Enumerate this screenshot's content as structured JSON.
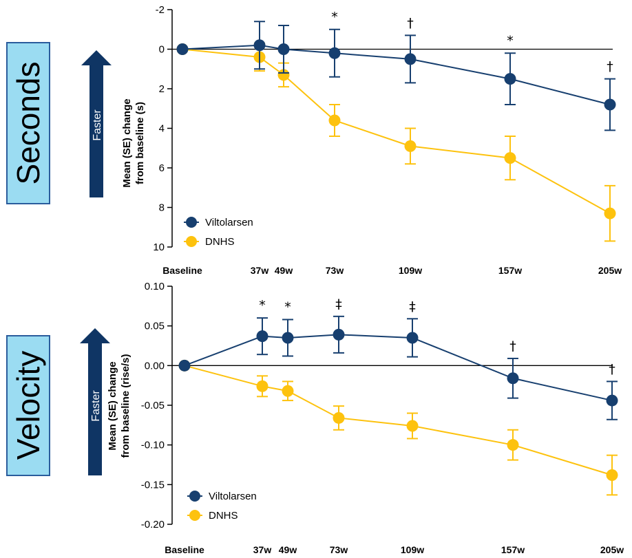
{
  "colors": {
    "viltolarsen": "#173f6f",
    "dnhs": "#fdc20e",
    "panel_fill": "#9bdcf2",
    "panel_border": "#2a5c9c",
    "arrow": "#0f3564"
  },
  "panels": [
    {
      "side_label": "Seconds",
      "arrow_label": "Faster",
      "ylabel_line1": "Mean (SE) change",
      "ylabel_line2": "from baseline (s)",
      "legend": [
        "Viltolarsen",
        "DNHS"
      ],
      "x_labels": [
        "Baseline",
        "37w",
        "49w",
        "73w",
        "109w",
        "157w",
        "205w"
      ]
    },
    {
      "side_label": "Velocity",
      "arrow_label": "Faster",
      "ylabel_line1": "Mean (SE) change",
      "ylabel_line2": "from baseline (rise/s)",
      "legend": [
        "Viltolarsen",
        "DNHS"
      ],
      "x_labels": [
        "Baseline",
        "37w",
        "49w",
        "73w",
        "109w",
        "157w",
        "205w"
      ]
    }
  ],
  "chart_data": [
    {
      "type": "line",
      "x": [
        "Baseline",
        "37w",
        "49w",
        "73w",
        "109w",
        "157w",
        "205w"
      ],
      "x_weeks": [
        0,
        37,
        49,
        73,
        109,
        157,
        205
      ],
      "ylim": [
        -2,
        10
      ],
      "y_inverted": true,
      "yticks": [
        "-2",
        "0",
        "2",
        "4",
        "6",
        "8",
        "10"
      ],
      "series": [
        {
          "name": "Viltolarsen",
          "values": [
            0,
            -0.2,
            0,
            0.2,
            0.5,
            1.5,
            2.8
          ],
          "se": [
            0,
            1.2,
            1.2,
            1.2,
            1.2,
            1.3,
            1.3
          ]
        },
        {
          "name": "DNHS",
          "values": [
            0,
            0.4,
            1.3,
            3.6,
            4.9,
            5.5,
            8.3
          ],
          "se": [
            0,
            0.7,
            0.6,
            0.8,
            0.9,
            1.1,
            1.4
          ]
        }
      ],
      "annotations": [
        {
          "x": "73w",
          "text": "*"
        },
        {
          "x": "109w",
          "text": "†"
        },
        {
          "x": "157w",
          "text": "*"
        },
        {
          "x": "205w",
          "text": "†"
        }
      ]
    },
    {
      "type": "line",
      "x": [
        "Baseline",
        "37w",
        "49w",
        "73w",
        "109w",
        "157w",
        "205w"
      ],
      "x_weeks": [
        0,
        37,
        49,
        73,
        109,
        157,
        205
      ],
      "ylim": [
        -0.2,
        0.1
      ],
      "yticks": [
        "0.10",
        "0.05",
        "0.00",
        "-0.05",
        "-0.10",
        "-0.15",
        "-0.20"
      ],
      "series": [
        {
          "name": "Viltolarsen",
          "values": [
            0,
            0.037,
            0.035,
            0.039,
            0.035,
            -0.016,
            -0.044
          ],
          "se": [
            0,
            0.023,
            0.023,
            0.023,
            0.024,
            0.025,
            0.024
          ]
        },
        {
          "name": "DNHS",
          "values": [
            0,
            -0.026,
            -0.032,
            -0.066,
            -0.076,
            -0.1,
            -0.138
          ],
          "se": [
            0,
            0.013,
            0.012,
            0.015,
            0.016,
            0.019,
            0.025
          ]
        }
      ],
      "annotations": [
        {
          "x": "37w",
          "text": "*"
        },
        {
          "x": "49w",
          "text": "*"
        },
        {
          "x": "73w",
          "text": "‡"
        },
        {
          "x": "109w",
          "text": "‡"
        },
        {
          "x": "157w",
          "text": "†"
        },
        {
          "x": "205w",
          "text": "†"
        }
      ]
    }
  ]
}
